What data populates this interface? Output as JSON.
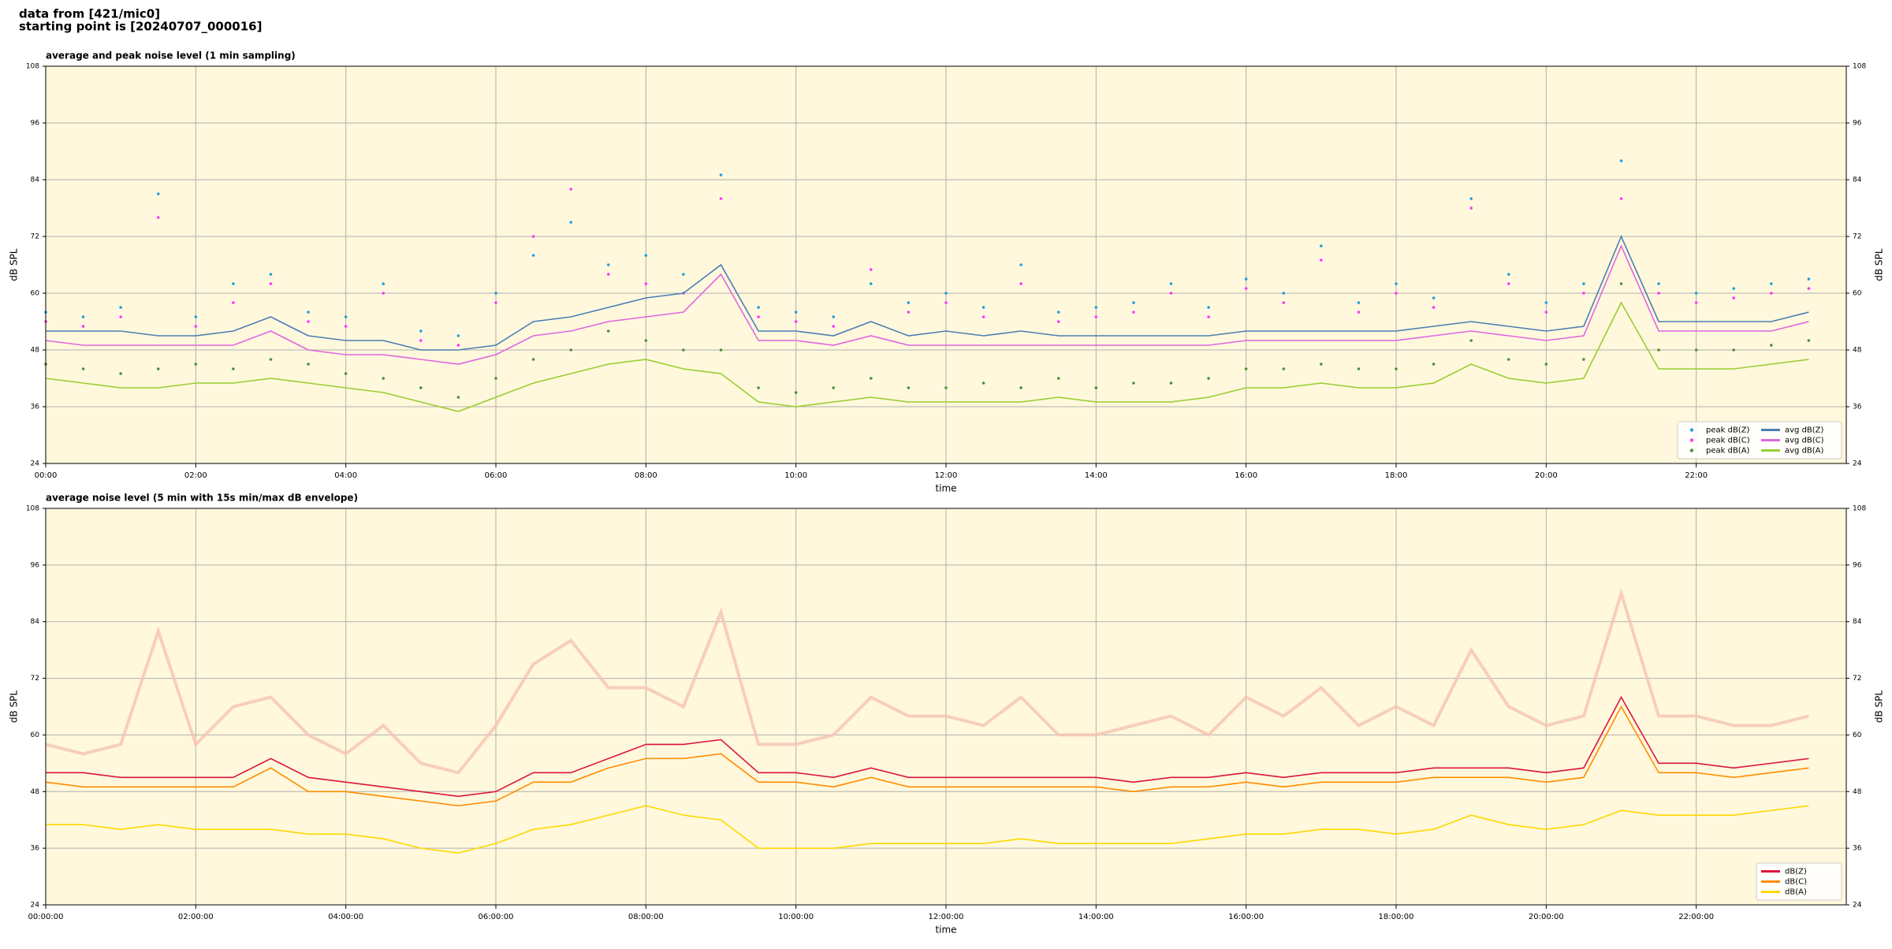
{
  "header": {
    "line1": "data from [421/mic0]",
    "line2": "starting point is [20240707_000016]"
  },
  "chart_data": [
    {
      "type": "line",
      "title": "average and peak noise level (1 min sampling)",
      "xlabel": "time",
      "ylabel": "dB SPL",
      "x": [
        0,
        0.5,
        1,
        1.5,
        2,
        2.5,
        3,
        3.5,
        4,
        4.5,
        5,
        5.5,
        6,
        6.5,
        7,
        7.5,
        8,
        8.5,
        9,
        9.5,
        10,
        10.5,
        11,
        11.5,
        12,
        12.5,
        13,
        13.5,
        14,
        14.5,
        15,
        15.5,
        16,
        16.5,
        17,
        17.5,
        18,
        18.5,
        19,
        19.5,
        20,
        20.5,
        21,
        21.5,
        22,
        22.5,
        23,
        23.5
      ],
      "xlim": [
        0,
        24
      ],
      "xticks": [
        {
          "value": 0,
          "label": "00:00"
        },
        {
          "value": 2,
          "label": "02:00"
        },
        {
          "value": 4,
          "label": "04:00"
        },
        {
          "value": 6,
          "label": "06:00"
        },
        {
          "value": 8,
          "label": "08:00"
        },
        {
          "value": 10,
          "label": "10:00"
        },
        {
          "value": 12,
          "label": "12:00"
        },
        {
          "value": 14,
          "label": "14:00"
        },
        {
          "value": 16,
          "label": "16:00"
        },
        {
          "value": 18,
          "label": "18:00"
        },
        {
          "value": 20,
          "label": "20:00"
        },
        {
          "value": 22,
          "label": "22:00"
        }
      ],
      "ylim": [
        24,
        108
      ],
      "yticks": [
        24,
        36,
        48,
        60,
        72,
        84,
        96,
        108
      ],
      "grid": true,
      "legend": "lower right",
      "legend_columns": 2,
      "series": [
        {
          "name": "peak dB(Z)",
          "style": "points",
          "color": "#1f9fe0",
          "values": [
            56,
            55,
            57,
            81,
            55,
            62,
            64,
            56,
            55,
            62,
            52,
            51,
            60,
            68,
            75,
            66,
            68,
            64,
            85,
            57,
            56,
            55,
            62,
            58,
            60,
            57,
            66,
            56,
            57,
            58,
            62,
            57,
            63,
            60,
            70,
            58,
            62,
            59,
            80,
            64,
            58,
            62,
            88,
            62,
            60,
            61,
            62,
            63
          ]
        },
        {
          "name": "peak dB(C)",
          "style": "points",
          "color": "#ff33ff",
          "values": [
            54,
            53,
            55,
            76,
            53,
            58,
            62,
            54,
            53,
            60,
            50,
            49,
            58,
            72,
            82,
            64,
            62,
            60,
            80,
            55,
            54,
            53,
            65,
            56,
            58,
            55,
            62,
            54,
            55,
            56,
            60,
            55,
            61,
            58,
            67,
            56,
            60,
            57,
            78,
            62,
            56,
            60,
            80,
            60,
            58,
            59,
            60,
            61
          ]
        },
        {
          "name": "peak dB(A)",
          "style": "points",
          "color": "#4f8f3a",
          "values": [
            45,
            44,
            43,
            44,
            45,
            44,
            46,
            45,
            43,
            42,
            40,
            38,
            42,
            46,
            48,
            52,
            50,
            48,
            48,
            40,
            39,
            40,
            42,
            40,
            40,
            41,
            40,
            42,
            40,
            41,
            41,
            42,
            44,
            44,
            45,
            44,
            44,
            45,
            50,
            46,
            45,
            46,
            62,
            48,
            48,
            48,
            49,
            50
          ]
        },
        {
          "name": "avg dB(Z)",
          "style": "line",
          "color": "#4a7fb5",
          "values": [
            52,
            52,
            52,
            51,
            51,
            52,
            55,
            51,
            50,
            50,
            48,
            48,
            49,
            54,
            55,
            57,
            59,
            60,
            66,
            52,
            52,
            51,
            54,
            51,
            52,
            51,
            52,
            51,
            51,
            51,
            51,
            51,
            52,
            52,
            52,
            52,
            52,
            53,
            54,
            53,
            52,
            53,
            72,
            54,
            54,
            54,
            54,
            56
          ]
        },
        {
          "name": "avg dB(C)",
          "style": "line",
          "color": "#e066e0",
          "values": [
            50,
            49,
            49,
            49,
            49,
            49,
            52,
            48,
            47,
            47,
            46,
            45,
            47,
            51,
            52,
            54,
            55,
            56,
            64,
            50,
            50,
            49,
            51,
            49,
            49,
            49,
            49,
            49,
            49,
            49,
            49,
            49,
            50,
            50,
            50,
            50,
            50,
            51,
            52,
            51,
            50,
            51,
            70,
            52,
            52,
            52,
            52,
            54
          ]
        },
        {
          "name": "avg dB(A)",
          "style": "line",
          "color": "#9acd32",
          "values": [
            42,
            41,
            40,
            40,
            41,
            41,
            42,
            41,
            40,
            39,
            37,
            35,
            38,
            41,
            43,
            45,
            46,
            44,
            43,
            37,
            36,
            37,
            38,
            37,
            37,
            37,
            37,
            38,
            37,
            37,
            37,
            38,
            40,
            40,
            41,
            40,
            40,
            41,
            45,
            42,
            41,
            42,
            58,
            44,
            44,
            44,
            45,
            46
          ]
        }
      ]
    },
    {
      "type": "line",
      "title": "average noise level (5 min with 15s min/max dB envelope)",
      "xlabel": "time",
      "ylabel": "dB SPL",
      "x": [
        0,
        0.5,
        1,
        1.5,
        2,
        2.5,
        3,
        3.5,
        4,
        4.5,
        5,
        5.5,
        6,
        6.5,
        7,
        7.5,
        8,
        8.5,
        9,
        9.5,
        10,
        10.5,
        11,
        11.5,
        12,
        12.5,
        13,
        13.5,
        14,
        14.5,
        15,
        15.5,
        16,
        16.5,
        17,
        17.5,
        18,
        18.5,
        19,
        19.5,
        20,
        20.5,
        21,
        21.5,
        22,
        22.5,
        23,
        23.5
      ],
      "xlim": [
        0,
        24
      ],
      "xticks": [
        {
          "value": 0,
          "label": "00:00:00"
        },
        {
          "value": 2,
          "label": "02:00:00"
        },
        {
          "value": 4,
          "label": "04:00:00"
        },
        {
          "value": 6,
          "label": "06:00:00"
        },
        {
          "value": 8,
          "label": "08:00:00"
        },
        {
          "value": 10,
          "label": "10:00:00"
        },
        {
          "value": 12,
          "label": "12:00:00"
        },
        {
          "value": 14,
          "label": "14:00:00"
        },
        {
          "value": 16,
          "label": "16:00:00"
        },
        {
          "value": 18,
          "label": "18:00:00"
        },
        {
          "value": 20,
          "label": "20:00:00"
        },
        {
          "value": 22,
          "label": "22:00:00"
        }
      ],
      "ylim": [
        24,
        108
      ],
      "yticks": [
        24,
        36,
        48,
        60,
        72,
        84,
        96,
        108
      ],
      "grid": true,
      "legend": "lower right",
      "legend_columns": 1,
      "envelope": {
        "color": "#f6c3b0",
        "values": [
          58,
          56,
          58,
          82,
          58,
          66,
          68,
          60,
          56,
          62,
          54,
          52,
          62,
          75,
          80,
          70,
          70,
          66,
          86,
          58,
          58,
          60,
          68,
          64,
          64,
          62,
          68,
          60,
          60,
          62,
          64,
          60,
          68,
          64,
          70,
          62,
          66,
          62,
          78,
          66,
          62,
          64,
          90,
          64,
          64,
          62,
          62,
          64
        ]
      },
      "series": [
        {
          "name": "dB(Z)",
          "style": "line",
          "color": "#dc143c",
          "values": [
            52,
            52,
            51,
            51,
            51,
            51,
            55,
            51,
            50,
            49,
            48,
            47,
            48,
            52,
            52,
            55,
            58,
            58,
            59,
            52,
            52,
            51,
            53,
            51,
            51,
            51,
            51,
            51,
            51,
            50,
            51,
            51,
            52,
            51,
            52,
            52,
            52,
            53,
            53,
            53,
            52,
            53,
            68,
            54,
            54,
            53,
            54,
            55
          ]
        },
        {
          "name": "dB(C)",
          "style": "line",
          "color": "#ff8c00",
          "values": [
            50,
            49,
            49,
            49,
            49,
            49,
            53,
            48,
            48,
            47,
            46,
            45,
            46,
            50,
            50,
            53,
            55,
            55,
            56,
            50,
            50,
            49,
            51,
            49,
            49,
            49,
            49,
            49,
            49,
            48,
            49,
            49,
            50,
            49,
            50,
            50,
            50,
            51,
            51,
            51,
            50,
            51,
            66,
            52,
            52,
            51,
            52,
            53
          ]
        },
        {
          "name": "dB(A)",
          "style": "line",
          "color": "#ffd700",
          "values": [
            41,
            41,
            40,
            41,
            40,
            40,
            40,
            39,
            39,
            38,
            36,
            35,
            37,
            40,
            41,
            43,
            45,
            43,
            42,
            36,
            36,
            36,
            37,
            37,
            37,
            37,
            38,
            37,
            37,
            37,
            37,
            38,
            39,
            39,
            40,
            40,
            39,
            40,
            43,
            41,
            40,
            41,
            44,
            43,
            43,
            43,
            44,
            45
          ]
        }
      ]
    }
  ]
}
